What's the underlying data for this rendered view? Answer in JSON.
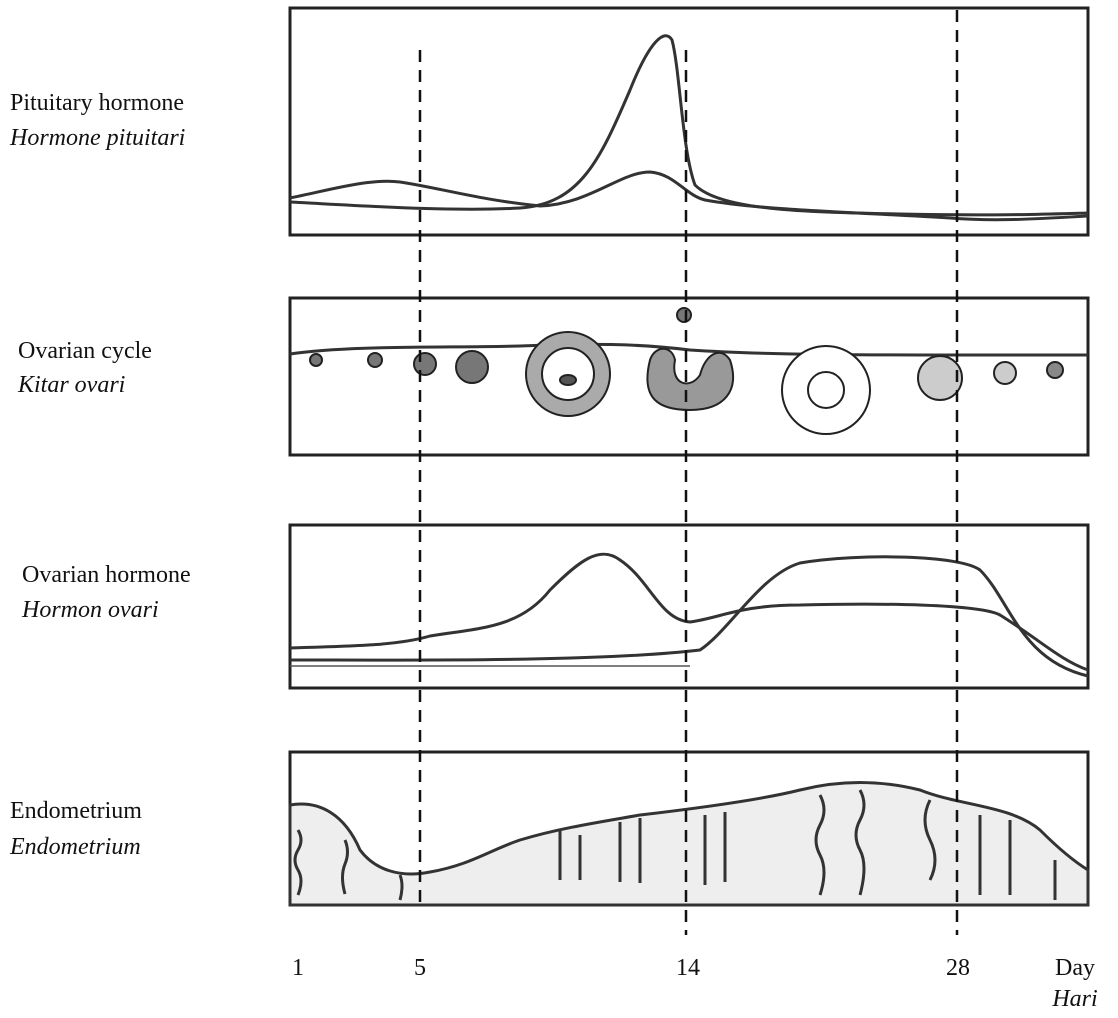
{
  "rows": [
    {
      "label": "Pituitary hormone",
      "label_ms": "Hormone pituitari"
    },
    {
      "label": "Ovarian cycle",
      "label_ms": "Kitar ovari"
    },
    {
      "label": "Ovarian hormone",
      "label_ms": "Hormon ovari"
    },
    {
      "label": "Endometrium",
      "label_ms": "Endometrium"
    }
  ],
  "day_axis": {
    "ticks": [
      "1",
      "5",
      "14",
      "28"
    ],
    "unit": "Day",
    "unit_ms": "Hari"
  }
}
